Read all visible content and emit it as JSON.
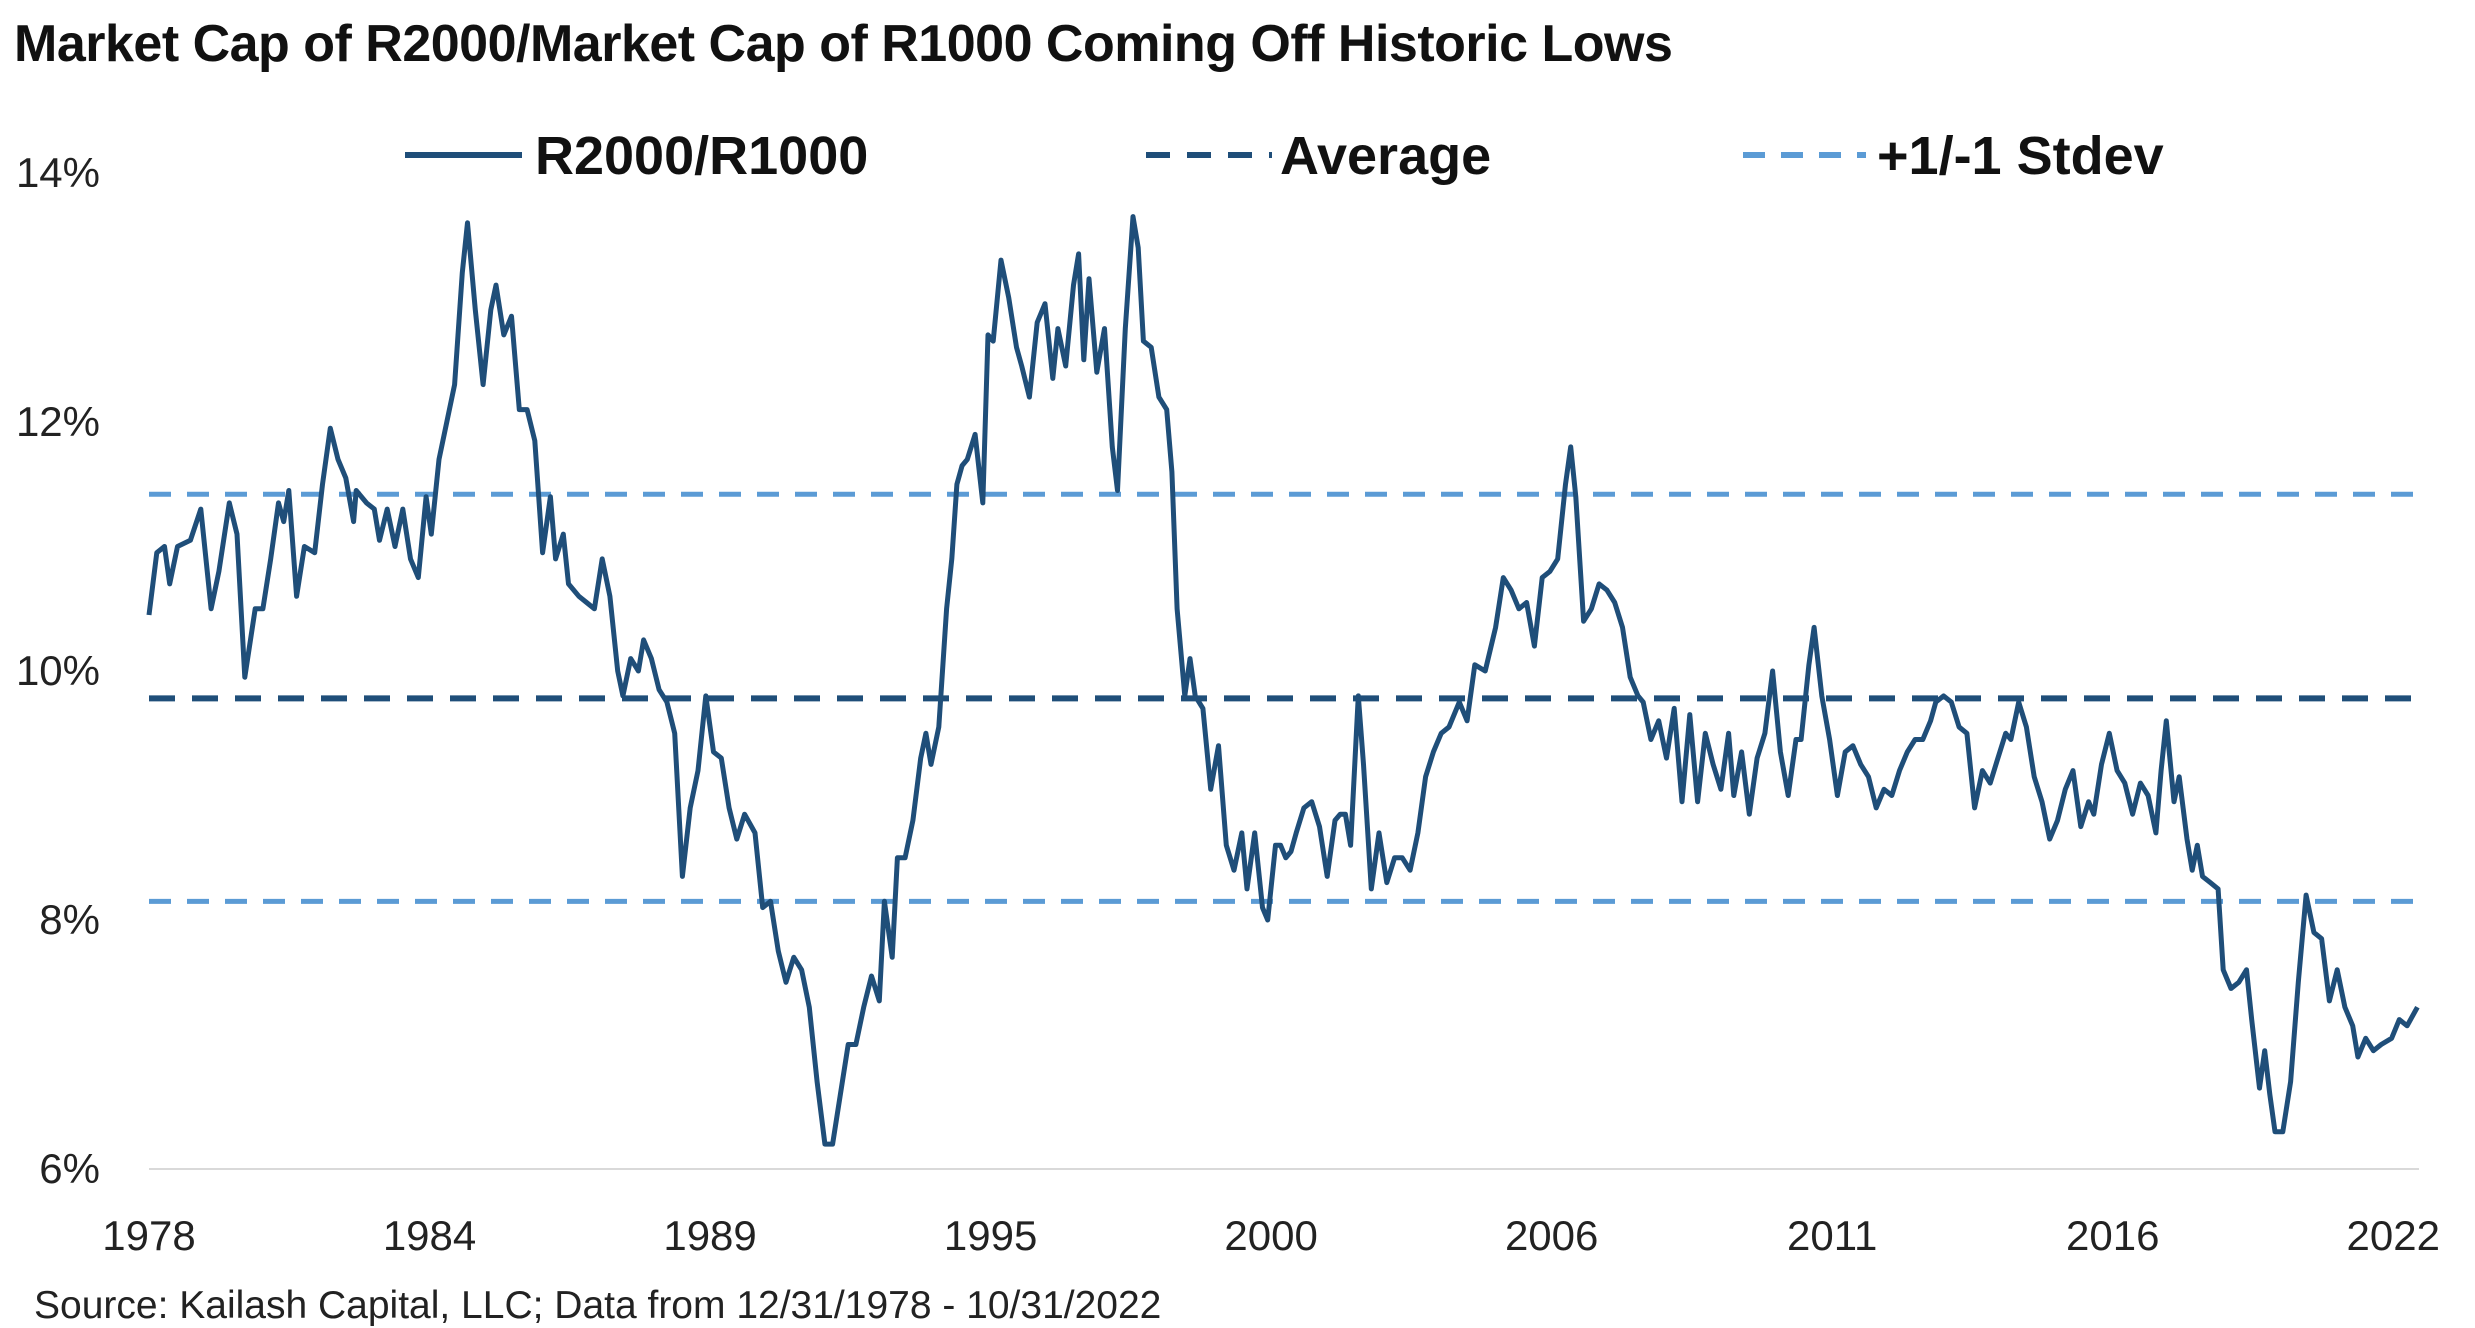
{
  "chart_data": {
    "type": "line",
    "title": "Market Cap of R2000/Market Cap of R1000 Coming Off Historic Lows",
    "source": "Source: Kailash Capital, LLC; Data from 12/31/1978 - 10/31/2022",
    "xlabel": "",
    "ylabel": "",
    "ylim": [
      6,
      14
    ],
    "y_ticks": [
      "6%",
      "8%",
      "10%",
      "12%",
      "14%"
    ],
    "y_tick_values": [
      6,
      8,
      10,
      12,
      14
    ],
    "x_range": [
      1979.0,
      2022.83
    ],
    "x_tick_labels": [
      "1978",
      "1984",
      "1989",
      "1995",
      "2000",
      "2006",
      "2011",
      "2016",
      "2022"
    ],
    "grid": false,
    "legend_placement": "top",
    "colors": {
      "series": "#1f4e79",
      "average": "#1f4e79",
      "stdev": "#5b9bd5",
      "baseline": "#d9d9d9"
    },
    "legend": [
      "R2000/R1000",
      "Average",
      "+1/-1 Stdev"
    ],
    "reference_lines": {
      "average": 9.78,
      "stdev_upper": 11.42,
      "stdev_lower": 8.15
    },
    "series": [
      {
        "name": "R2000/R1000",
        "x": [
          1979.0,
          1979.15,
          1979.3,
          1979.4,
          1979.55,
          1979.8,
          1980.0,
          1980.2,
          1980.35,
          1980.55,
          1980.7,
          1980.85,
          1981.05,
          1981.2,
          1981.35,
          1981.5,
          1981.6,
          1981.7,
          1981.85,
          1982.0,
          1982.2,
          1982.35,
          1982.5,
          1982.65,
          1982.8,
          1982.95,
          1983.0,
          1983.2,
          1983.35,
          1983.45,
          1983.6,
          1983.75,
          1983.9,
          1984.05,
          1984.2,
          1984.35,
          1984.45,
          1984.6,
          1984.75,
          1984.9,
          1985.05,
          1985.15,
          1985.3,
          1985.45,
          1985.6,
          1985.7,
          1985.85,
          1986.0,
          1986.15,
          1986.3,
          1986.45,
          1986.6,
          1986.75,
          1986.85,
          1987.0,
          1987.1,
          1987.3,
          1987.45,
          1987.6,
          1987.75,
          1987.9,
          1988.05,
          1988.15,
          1988.3,
          1988.45,
          1988.55,
          1988.7,
          1988.85,
          1989.0,
          1989.15,
          1989.3,
          1989.45,
          1989.6,
          1989.75,
          1989.9,
          1990.05,
          1990.2,
          1990.35,
          1990.5,
          1990.7,
          1990.85,
          1991.0,
          1991.15,
          1991.3,
          1991.45,
          1991.6,
          1991.75,
          1991.9,
          1992.05,
          1992.2,
          1992.35,
          1992.5,
          1992.65,
          1992.8,
          1992.95,
          1993.1,
          1993.2,
          1993.35,
          1993.45,
          1993.6,
          1993.75,
          1993.9,
          1994.0,
          1994.1,
          1994.25,
          1994.4,
          1994.5,
          1994.6,
          1994.7,
          1994.8,
          1994.95,
          1995.1,
          1995.2,
          1995.3,
          1995.45,
          1995.6,
          1995.75,
          1995.85,
          1996.0,
          1996.15,
          1996.3,
          1996.45,
          1996.55,
          1996.7,
          1996.85,
          1996.95,
          1997.05,
          1997.15,
          1997.3,
          1997.45,
          1997.6,
          1997.7,
          1997.85,
          1998.0,
          1998.1,
          1998.2,
          1998.35,
          1998.5,
          1998.65,
          1998.75,
          1998.85,
          1999.0,
          1999.1,
          1999.2,
          1999.35,
          1999.5,
          1999.65,
          1999.8,
          1999.95,
          2000.1,
          2000.2,
          2000.35,
          2000.5,
          2000.6,
          2000.75,
          2000.85,
          2000.95,
          2001.05,
          2001.15,
          2001.3,
          2001.45,
          2001.6,
          2001.75,
          2001.9,
          2002.0,
          2002.1,
          2002.2,
          2002.35,
          2002.45,
          2002.6,
          2002.75,
          2002.9,
          2003.05,
          2003.2,
          2003.35,
          2003.5,
          2003.65,
          2003.8,
          2003.95,
          2004.1,
          2004.3,
          2004.45,
          2004.6,
          2004.8,
          2005.0,
          2005.15,
          2005.3,
          2005.45,
          2005.6,
          2005.75,
          2005.9,
          2006.05,
          2006.2,
          2006.35,
          2006.45,
          2006.55,
          2006.7,
          2006.85,
          2007.0,
          2007.15,
          2007.3,
          2007.45,
          2007.6,
          2007.75,
          2007.85,
          2008.0,
          2008.15,
          2008.3,
          2008.45,
          2008.6,
          2008.75,
          2008.9,
          2009.05,
          2009.2,
          2009.35,
          2009.5,
          2009.6,
          2009.75,
          2009.9,
          2010.05,
          2010.2,
          2010.35,
          2010.5,
          2010.65,
          2010.8,
          2010.9,
          2011.05,
          2011.15,
          2011.3,
          2011.45,
          2011.6,
          2011.75,
          2011.9,
          2012.05,
          2012.2,
          2012.35,
          2012.5,
          2012.65,
          2012.8,
          2012.95,
          2013.1,
          2013.25,
          2013.4,
          2013.5,
          2013.65,
          2013.8,
          2013.95,
          2014.1,
          2014.25,
          2014.4,
          2014.55,
          2014.7,
          2014.85,
          2014.95,
          2015.1,
          2015.25,
          2015.4,
          2015.55,
          2015.7,
          2015.85,
          2016.0,
          2016.15,
          2016.3,
          2016.45,
          2016.55,
          2016.7,
          2016.85,
          2017.0,
          2017.15,
          2017.3,
          2017.45,
          2017.6,
          2017.75,
          2017.85,
          2017.95,
          2018.1,
          2018.2,
          2018.35,
          2018.45,
          2018.55,
          2018.65,
          2018.8,
          2018.95,
          2019.05,
          2019.2,
          2019.35,
          2019.5,
          2019.6,
          2019.75,
          2019.85,
          2019.95,
          2020.05,
          2020.2,
          2020.35,
          2020.5,
          2020.65,
          2020.8,
          2020.95,
          2021.1,
          2021.25,
          2021.4,
          2021.55,
          2021.65,
          2021.8,
          2021.95,
          2022.1,
          2022.3,
          2022.45,
          2022.6,
          2022.8
        ],
        "y": [
          10.45,
          10.95,
          11.0,
          10.7,
          11.0,
          11.05,
          11.3,
          10.5,
          10.8,
          11.35,
          11.1,
          9.95,
          10.5,
          10.5,
          10.9,
          11.35,
          11.2,
          11.45,
          10.6,
          11.0,
          10.95,
          11.5,
          11.95,
          11.7,
          11.55,
          11.2,
          11.45,
          11.35,
          11.3,
          11.05,
          11.3,
          11.0,
          11.3,
          10.9,
          10.75,
          11.4,
          11.1,
          11.7,
          12.0,
          12.3,
          13.2,
          13.6,
          12.9,
          12.3,
          12.9,
          13.1,
          12.7,
          12.85,
          12.1,
          12.1,
          11.85,
          10.95,
          11.4,
          10.9,
          11.1,
          10.7,
          10.6,
          10.55,
          10.5,
          10.9,
          10.6,
          10.0,
          9.8,
          10.1,
          10.0,
          10.25,
          10.1,
          9.85,
          9.75,
          9.5,
          8.35,
          8.9,
          9.2,
          9.8,
          9.35,
          9.3,
          8.9,
          8.65,
          8.85,
          8.7,
          8.1,
          8.15,
          7.75,
          7.5,
          7.7,
          7.6,
          7.3,
          6.7,
          6.2,
          6.2,
          6.6,
          7.0,
          7.0,
          7.3,
          7.55,
          7.35,
          8.15,
          7.7,
          8.5,
          8.5,
          8.8,
          9.3,
          9.5,
          9.25,
          9.55,
          10.5,
          10.9,
          11.5,
          11.65,
          11.7,
          11.9,
          11.35,
          12.7,
          12.65,
          13.3,
          13.0,
          12.6,
          12.45,
          12.2,
          12.8,
          12.95,
          12.35,
          12.75,
          12.45,
          13.1,
          13.35,
          12.5,
          13.15,
          12.4,
          12.75,
          11.8,
          11.45,
          12.75,
          13.65,
          13.4,
          12.65,
          12.6,
          12.2,
          12.1,
          11.6,
          10.5,
          9.8,
          10.1,
          9.8,
          9.7,
          9.05,
          9.4,
          8.6,
          8.4,
          8.7,
          8.25,
          8.7,
          8.1,
          8.0,
          8.6,
          8.6,
          8.5,
          8.55,
          8.7,
          8.9,
          8.95,
          8.75,
          8.35,
          8.8,
          8.85,
          8.85,
          8.6,
          9.8,
          9.25,
          8.25,
          8.7,
          8.3,
          8.5,
          8.5,
          8.4,
          8.7,
          9.15,
          9.35,
          9.5,
          9.55,
          9.75,
          9.6,
          10.05,
          10.0,
          10.35,
          10.75,
          10.65,
          10.5,
          10.55,
          10.2,
          10.75,
          10.8,
          10.9,
          11.5,
          11.8,
          11.4,
          10.4,
          10.5,
          10.7,
          10.65,
          10.55,
          10.35,
          9.95,
          9.8,
          9.75,
          9.45,
          9.6,
          9.3,
          9.7,
          8.95,
          9.65,
          8.95,
          9.5,
          9.25,
          9.05,
          9.5,
          9.0,
          9.35,
          8.85,
          9.3,
          9.5,
          10.0,
          9.35,
          9.0,
          9.45,
          9.45,
          10.05,
          10.35,
          9.8,
          9.45,
          9.0,
          9.35,
          9.4,
          9.25,
          9.15,
          8.9,
          9.05,
          9.0,
          9.2,
          9.35,
          9.45,
          9.45,
          9.6,
          9.75,
          9.8,
          9.75,
          9.55,
          9.5,
          8.9,
          9.2,
          9.1,
          9.3,
          9.5,
          9.45,
          9.75,
          9.55,
          9.15,
          8.95,
          8.65,
          8.8,
          9.05,
          9.2,
          8.75,
          8.95,
          8.85,
          9.25,
          9.5,
          9.2,
          9.1,
          8.85,
          9.1,
          9.0,
          8.7,
          9.2,
          9.6,
          8.95,
          9.15,
          8.65,
          8.4,
          8.6,
          8.35,
          8.3,
          8.25,
          7.6,
          7.45,
          7.5,
          7.6,
          7.2,
          6.65,
          6.95,
          6.6,
          6.3,
          6.3,
          6.7,
          7.5,
          8.2,
          7.9,
          7.85,
          7.35,
          7.6,
          7.3,
          7.15,
          6.9,
          7.05,
          6.95,
          7.0,
          7.05,
          7.2,
          7.15,
          7.3
        ]
      }
    ]
  }
}
